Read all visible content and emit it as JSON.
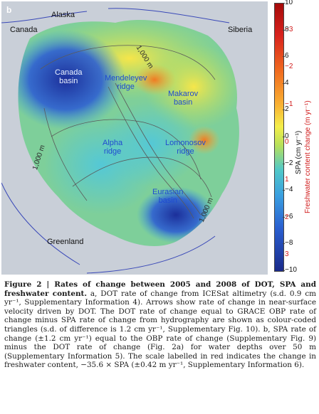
{
  "figure": {
    "panel_letter": "b",
    "land_labels": {
      "alaska": "Alaska",
      "canada": "Canada",
      "siberia": "Siberia",
      "greenland": "Greenland"
    },
    "sea_labels": {
      "canada_basin": "Canada\nbasin",
      "mendeleyev_ridge": "Mendeleyev\nridge",
      "makarov_basin": "Makarov\nbasin",
      "alpha_ridge": "Alpha\nridge",
      "lomonosov_ridge": "Lomonosov\nridge",
      "eurasian_basin": "Eurasian\nbasin"
    },
    "contour_labels": {
      "top": "1,000 m",
      "left": "1,000 m",
      "right": "1,000 m"
    },
    "colorbar": {
      "spa_ticks": [
        "10",
        "8",
        "6",
        "4",
        "2",
        "0",
        "−2",
        "−4",
        "−6",
        "−8",
        "−10"
      ],
      "freshwater_ticks": [
        "−3",
        "−2",
        "−1",
        "0",
        "1",
        "2",
        "3"
      ],
      "spa_label": "SPA (cm yr⁻¹)",
      "freshwater_label": "Freshwater content change (m yr⁻¹)"
    }
  },
  "caption": {
    "title": "Figure 2 | Rates of change between 2005 and 2008 of DOT, SPA and freshwater content.",
    "body": " a, DOT rate of change from ICESat altimetry (s.d. 0.9 cm yr⁻¹, Supplementary Information 4). Arrows show rate of change in near-surface velocity driven by DOT. The DOT rate of change equal to GRACE OBP rate of change minus SPA rate of change from hydrography are shown as colour-coded triangles (s.d. of difference is 1.2 cm yr⁻¹, Supplementary Fig. 10). b, SPA rate of change (±1.2 cm yr⁻¹) equal to the OBP rate of change (Supplementary Fig. 9) minus the DOT rate of change (Fig. 2a) for water depths over 50 m (Supplementary Information 5). The scale labelled in red indicates the change in freshwater content, −35.6 × SPA (±0.42 m yr⁻¹, Supplementary Information 6)."
  },
  "colors": {
    "land": "#c9cfd8",
    "coast": "#3a49b8",
    "contour": "#5a5a5a"
  }
}
